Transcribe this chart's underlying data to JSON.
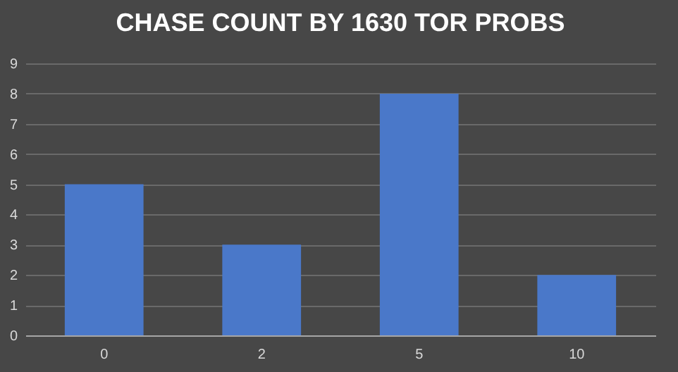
{
  "chart_data": {
    "type": "bar",
    "title": "CHASE COUNT BY 1630 TOR PROBS",
    "categories": [
      "0",
      "2",
      "5",
      "10"
    ],
    "values": [
      5,
      3,
      8,
      2
    ],
    "color": "#4a78c9",
    "ylim": [
      0,
      9
    ],
    "yticks": [
      0,
      1,
      2,
      3,
      4,
      5,
      6,
      7,
      8,
      9
    ],
    "grid": "y"
  }
}
